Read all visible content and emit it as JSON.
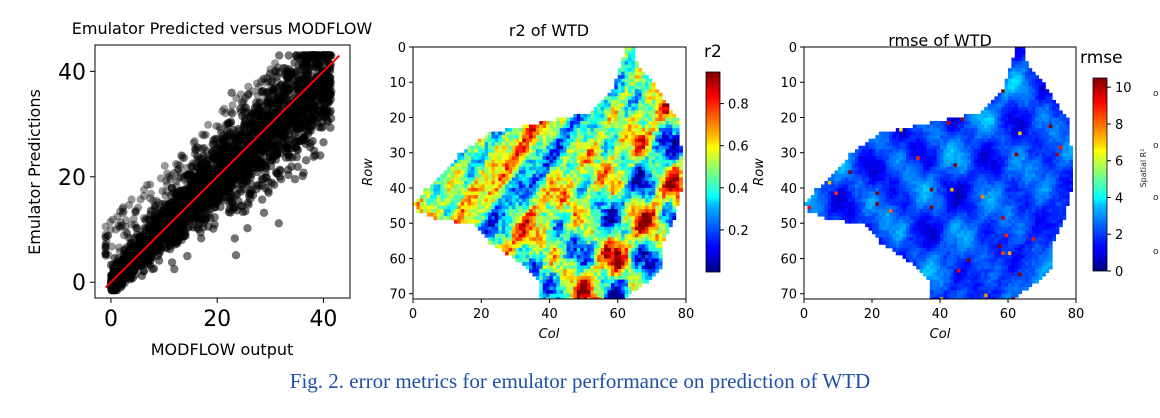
{
  "caption": "Fig. 2. error metrics for emulator performance on prediction of WTD",
  "chart_data": [
    {
      "type": "scatter",
      "title": "Emulator Predicted versus MODFLOW",
      "xlabel": "MODFLOW output",
      "ylabel": "Emulator Predictions",
      "xlim": [
        -3,
        45
      ],
      "ylim": [
        -3,
        45
      ],
      "xticks": [
        0,
        20,
        40
      ],
      "yticks": [
        0,
        20,
        40
      ],
      "grid": false,
      "marker_color": "#000000",
      "reference_line": {
        "x": [
          -1,
          43
        ],
        "y": [
          -1,
          43
        ],
        "color": "#ff0000"
      },
      "points_summary": "dense cloud of points spread around the 1:1 line from 0 to about 42"
    },
    {
      "type": "heatmap",
      "title": "r2 of WTD",
      "xlabel": "Col",
      "ylabel": "Row",
      "xticks": [
        0,
        20,
        40,
        60,
        80
      ],
      "yticks": [
        0,
        10,
        20,
        30,
        40,
        50,
        60,
        70
      ],
      "colorbar": {
        "label": "r2",
        "ticks": [
          0.2,
          0.4,
          0.6,
          0.8
        ],
        "range": [
          0.0,
          0.95
        ],
        "colormap": "jet"
      }
    },
    {
      "type": "heatmap",
      "title": "rmse of WTD",
      "xlabel": "Col",
      "ylabel": "Row",
      "xticks": [
        0,
        20,
        40,
        60,
        80
      ],
      "yticks": [
        0,
        10,
        20,
        30,
        40,
        50,
        60,
        70
      ],
      "colorbar": {
        "label": "rmse",
        "ticks": [
          0,
          2,
          4,
          6,
          8,
          10
        ],
        "range": [
          0,
          10.5
        ],
        "colormap": "jet"
      }
    }
  ],
  "side_labels": {
    "spatial_r2": "Spatial R²",
    "o_marks": [
      "o",
      "o",
      "o",
      "o"
    ]
  }
}
